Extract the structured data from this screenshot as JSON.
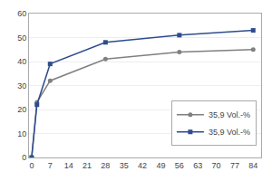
{
  "chart_data": {
    "type": "line",
    "x": [
      0,
      2,
      7,
      28,
      56,
      84
    ],
    "series": [
      {
        "name": "35,9 Vol.-%",
        "color": "#808080",
        "marker": "circle",
        "values": [
          0,
          23,
          32,
          41,
          44,
          45
        ]
      },
      {
        "name": "35,9 Vol.-%",
        "color": "#2e4d8e",
        "marker": "square",
        "values": [
          0,
          22,
          39,
          48,
          51,
          53
        ]
      }
    ],
    "xlim": [
      -1,
      87
    ],
    "xticks": [
      0,
      7,
      14,
      21,
      28,
      35,
      42,
      49,
      56,
      63,
      70,
      77,
      84
    ],
    "ylim": [
      0,
      60
    ],
    "yticks": [
      0,
      10,
      20,
      30,
      40,
      50,
      60
    ],
    "grid": "y",
    "legend": "lower right"
  }
}
